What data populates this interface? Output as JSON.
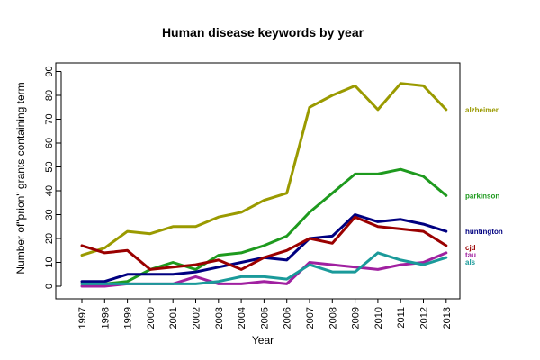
{
  "chart_data": {
    "type": "line",
    "title": "Human disease keywords by year",
    "xlabel": "Year",
    "ylabel": "Number of\"prion\" grants containing term",
    "categories": [
      "1997",
      "1998",
      "1999",
      "2000",
      "2001",
      "2002",
      "2003",
      "2004",
      "2005",
      "2006",
      "2007",
      "2008",
      "2009",
      "2010",
      "2011",
      "2012",
      "2013"
    ],
    "ylim": [
      0,
      90
    ],
    "yticks": [
      0,
      10,
      20,
      30,
      40,
      50,
      60,
      70,
      80,
      90
    ],
    "grid": false,
    "legend": "right-end labels",
    "series": [
      {
        "name": "alzheimer",
        "color": "#9a9a00",
        "values": [
          13,
          16,
          23,
          22,
          25,
          25,
          29,
          31,
          36,
          39,
          75,
          80,
          84,
          74,
          85,
          84,
          74
        ]
      },
      {
        "name": "parkinson",
        "color": "#1e9a1e",
        "values": [
          1,
          1,
          2,
          7,
          10,
          7,
          13,
          14,
          17,
          21,
          31,
          39,
          47,
          47,
          49,
          46,
          38
        ]
      },
      {
        "name": "huntington",
        "color": "#000080",
        "values": [
          2,
          2,
          5,
          5,
          5,
          6,
          8,
          10,
          12,
          11,
          20,
          21,
          30,
          27,
          28,
          26,
          23
        ]
      },
      {
        "name": "cjd",
        "color": "#9a0000",
        "values": [
          17,
          14,
          15,
          7,
          8,
          9,
          11,
          7,
          12,
          15,
          20,
          18,
          29,
          25,
          24,
          23,
          17
        ]
      },
      {
        "name": "tau",
        "color": "#a020a0",
        "values": [
          0,
          0,
          1,
          1,
          1,
          4,
          1,
          1,
          2,
          1,
          10,
          9,
          8,
          7,
          9,
          10,
          14
        ]
      },
      {
        "name": "als",
        "color": "#1a9a9a",
        "values": [
          1,
          1,
          1,
          1,
          1,
          1,
          2,
          4,
          4,
          3,
          9,
          6,
          6,
          14,
          11,
          9,
          12
        ]
      }
    ]
  }
}
